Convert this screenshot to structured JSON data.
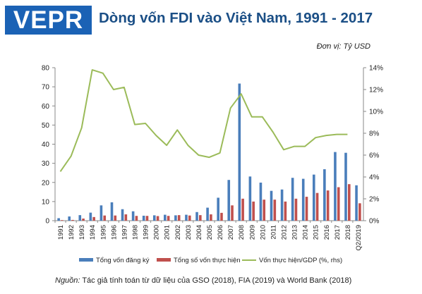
{
  "logo": "VEPR",
  "title": "Dòng vốn FDI vào Việt Nam, 1991 - 2017",
  "unit": "Đơn vị: Tỷ USD",
  "source": {
    "label": "Nguồn:",
    "text": " Tác giả tính toán từ dữ liệu của GSO (2018), FIA (2019) và World Bank (2018)"
  },
  "colors": {
    "registered": "#4a7ebb",
    "implemented": "#c0504d",
    "ratio": "#9bbb59"
  },
  "chart_data": {
    "type": "bar",
    "categories": [
      "1991",
      "1992",
      "1993",
      "1994",
      "1995",
      "1996",
      "1997",
      "1998",
      "1999",
      "2000",
      "2001",
      "2002",
      "2003",
      "2004",
      "2005",
      "2006",
      "2007",
      "2008",
      "2009",
      "2010",
      "2011",
      "2012",
      "2013",
      "2014",
      "2015",
      "2016",
      "2017",
      "2018",
      "Q2/2019"
    ],
    "series": [
      {
        "name": "Tổng vốn đăng ký",
        "type": "bar",
        "axis": "left",
        "values": [
          1.3,
          2.2,
          2.9,
          4.2,
          8.0,
          9.6,
          6.0,
          4.9,
          2.6,
          2.8,
          3.1,
          2.8,
          3.1,
          4.5,
          6.8,
          12.0,
          21.3,
          71.7,
          23.1,
          19.9,
          15.6,
          16.3,
          22.4,
          21.9,
          24.1,
          26.9,
          35.9,
          35.5,
          18.5
        ]
      },
      {
        "name": "Tổng số vốn thực hiện",
        "type": "bar",
        "axis": "left",
        "values": [
          0.3,
          0.4,
          1.1,
          1.9,
          2.7,
          2.7,
          3.3,
          2.5,
          2.5,
          2.4,
          2.5,
          2.9,
          2.7,
          2.9,
          3.3,
          4.1,
          8.0,
          11.5,
          10.0,
          11.0,
          11.0,
          10.0,
          11.5,
          12.5,
          14.5,
          15.8,
          17.5,
          19.1,
          9.1
        ]
      },
      {
        "name": "Vốn thực hiện/GDP (%, rhs)",
        "type": "line",
        "axis": "right",
        "values": [
          4.5,
          5.9,
          8.5,
          13.8,
          13.5,
          12.0,
          12.2,
          8.8,
          8.9,
          7.8,
          6.9,
          8.3,
          6.9,
          6.0,
          5.8,
          6.2,
          10.3,
          11.6,
          9.5,
          9.5,
          8.1,
          6.5,
          6.8,
          6.8,
          7.6,
          7.8,
          7.9,
          7.9,
          null
        ]
      }
    ],
    "yticks_left": [
      "0",
      "10",
      "20",
      "30",
      "40",
      "50",
      "60",
      "70",
      "80"
    ],
    "yticks_right": [
      "0%",
      "2%",
      "4%",
      "6%",
      "8%",
      "10%",
      "12%",
      "14%"
    ],
    "ylim_left": [
      0,
      80
    ],
    "ylim_right": [
      0,
      14
    ],
    "grid": false,
    "legend": "bottom"
  }
}
